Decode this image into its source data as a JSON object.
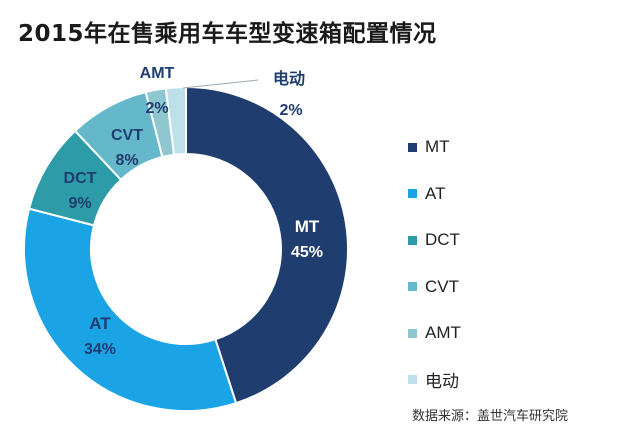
{
  "title": "2015年在售乘用车车型变速箱配置情况",
  "source": "数据来源：盖世汽车研究院",
  "chart_data": {
    "type": "pie",
    "donut": true,
    "title": "2015年在售乘用车车型变速箱配置情况",
    "series": [
      {
        "name": "MT",
        "value": 45,
        "label": "45%",
        "color": "#1f3d6e",
        "label_color": "#ffffff"
      },
      {
        "name": "AT",
        "value": 34,
        "label": "34%",
        "color": "#1aa4e6",
        "label_color": "#1f3d6e"
      },
      {
        "name": "DCT",
        "value": 9,
        "label": "9%",
        "color": "#2e9ba8",
        "label_color": "#1f3d6e"
      },
      {
        "name": "CVT",
        "value": 8,
        "label": "8%",
        "color": "#64b8c9",
        "label_color": "#1f3d6e"
      },
      {
        "name": "AMT",
        "value": 2,
        "label": "2%",
        "color": "#8ec7cf",
        "label_color": "#1f3d6e"
      },
      {
        "name": "电动",
        "value": 2,
        "label": "2%",
        "color": "#bfe0ea",
        "label_color": "#1f3d6e"
      }
    ],
    "legend": [
      "MT",
      "AT",
      "DCT",
      "CVT",
      "AMT",
      "电动"
    ],
    "legend_position": "right"
  }
}
